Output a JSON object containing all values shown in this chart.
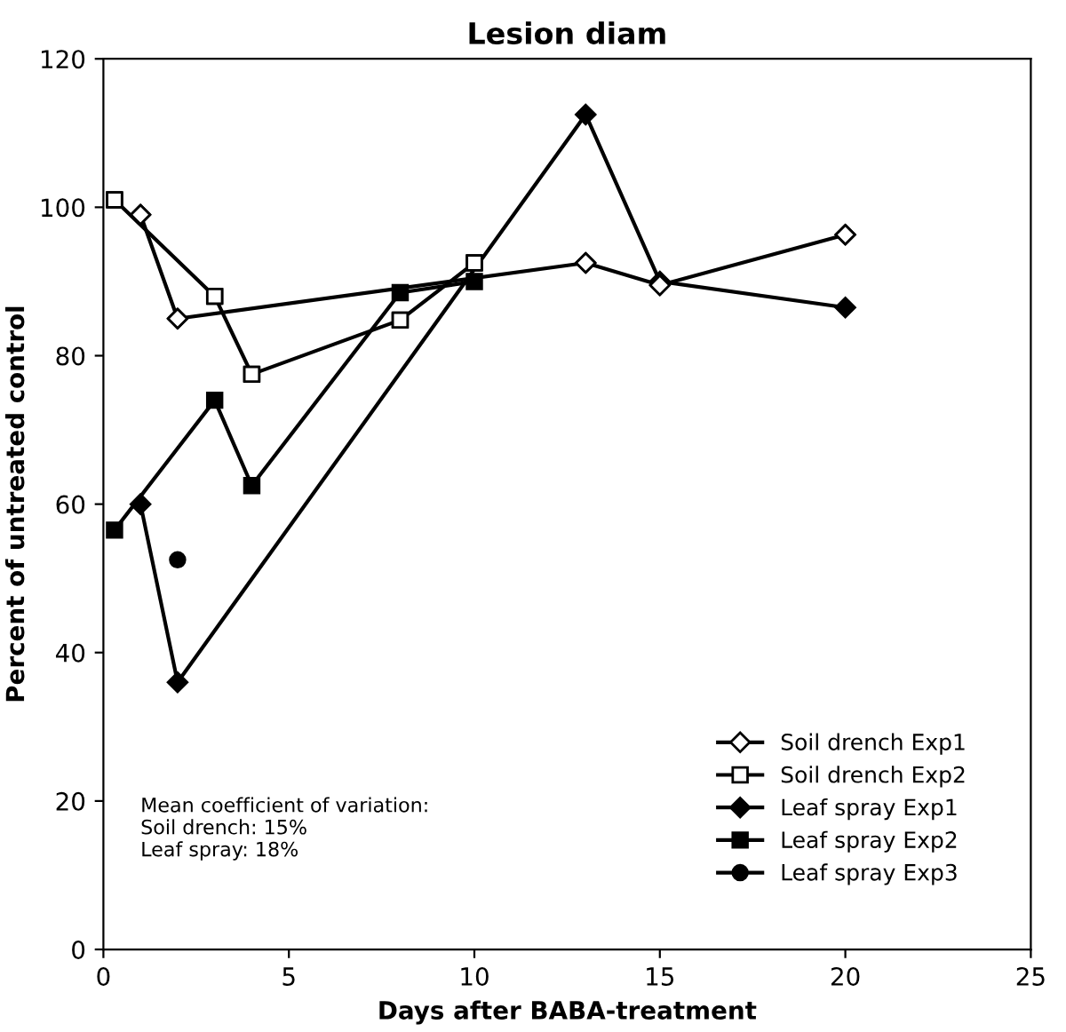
{
  "chart_data": {
    "type": "line",
    "title": "Lesion diam",
    "xlabel": "Days after BABA-treatment",
    "ylabel": "Percent of untreated control",
    "xlim": [
      0,
      25
    ],
    "xticks": [
      0,
      5,
      10,
      15,
      20,
      25
    ],
    "ylim": [
      0,
      120
    ],
    "yticks": [
      0,
      20,
      40,
      60,
      80,
      100,
      120
    ],
    "grid": false,
    "legend": "bottom right",
    "annotations": [
      "Mean coefficient of variation:\nSoil drench: 15%\nLeaf spray: 18%"
    ],
    "series": [
      {
        "name": "Soil drench Exp1",
        "color": "#000000",
        "marker": "diamond",
        "colors": [
          "#ffffff",
          "#ffffff",
          "#ffffff",
          "#ffffff",
          "#ffffff"
        ],
        "x": [
          1,
          2,
          13,
          15,
          20
        ],
        "values": [
          99,
          85,
          92.5,
          89.5,
          96.3
        ]
      },
      {
        "name": "Soil drench Exp2",
        "color": "#000000",
        "marker": "square",
        "colors": [
          "#ffffff",
          "#ffffff",
          "#ffffff",
          "#ffffff",
          "#ffffff"
        ],
        "x": [
          0.3,
          3,
          4,
          8,
          10
        ],
        "values": [
          101,
          88,
          77.5,
          84.8,
          92.5
        ]
      },
      {
        "name": "Leaf spray Exp1",
        "color": "#000000",
        "marker": "diamond",
        "x": [
          1,
          2,
          13,
          15,
          20
        ],
        "values": [
          60,
          36,
          112.5,
          90,
          86.5
        ]
      },
      {
        "name": "Leaf spray Exp2",
        "color": "#000000",
        "marker": "square",
        "x": [
          0.3,
          3,
          4,
          8,
          10
        ],
        "values": [
          56.5,
          74,
          62.5,
          88.5,
          90
        ]
      },
      {
        "name": "Leaf spray Exp3",
        "color": "#000000",
        "marker": "circle",
        "x": [
          2
        ],
        "values": [
          52.5
        ]
      }
    ]
  }
}
